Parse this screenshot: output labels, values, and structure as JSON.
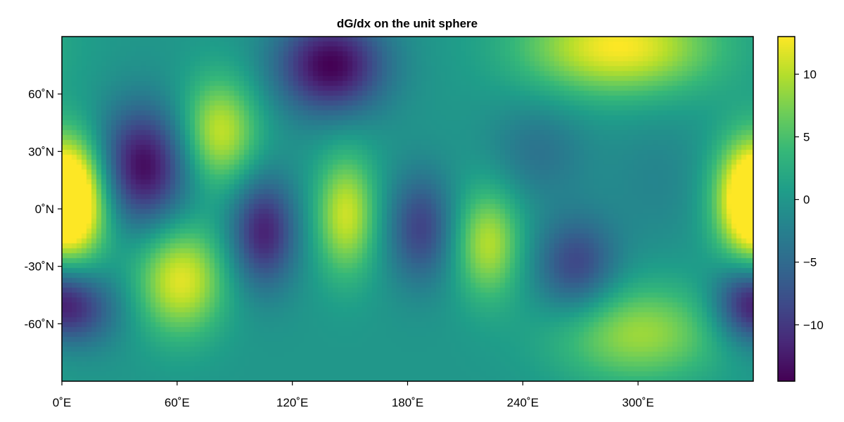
{
  "chart_data": {
    "type": "heatmap",
    "title": "dG/dx on the unit sphere",
    "xlabel": "",
    "ylabel": "",
    "x_range": [
      0,
      360
    ],
    "y_range": [
      -90,
      90
    ],
    "x_ticks": [
      0,
      60,
      120,
      180,
      240,
      300
    ],
    "x_tick_labels": [
      "0˚E",
      "60˚E",
      "120˚E",
      "180˚E",
      "240˚E",
      "300˚E"
    ],
    "y_ticks": [
      60,
      30,
      0,
      -30,
      -60
    ],
    "y_tick_labels": [
      "60˚N",
      "30˚N",
      "0˚N",
      "-30˚N",
      "-60˚N"
    ],
    "colormap": "viridis",
    "colorbar": {
      "range": [
        -14.5,
        13
      ],
      "ticks": [
        10,
        5,
        0,
        -5,
        -10
      ],
      "tick_labels": [
        "10",
        "5",
        "0",
        "−5",
        "−10"
      ]
    },
    "grid": false,
    "features": [
      {
        "lon": 5,
        "lat": 5,
        "value": 12,
        "spread_lon": 14,
        "spread_lat": 22
      },
      {
        "lon": 360,
        "lat": 5,
        "value": 12,
        "spread_lon": 14,
        "spread_lat": 22
      },
      {
        "lon": 42,
        "lat": 22,
        "value": -14,
        "spread_lon": 17,
        "spread_lat": 22
      },
      {
        "lon": 82,
        "lat": 40,
        "value": 11,
        "spread_lon": 14,
        "spread_lat": 20
      },
      {
        "lon": 140,
        "lat": 75,
        "value": -14.5,
        "spread_lon": 20,
        "spread_lat": 18
      },
      {
        "lon": 62,
        "lat": -37,
        "value": 12,
        "spread_lon": 16,
        "spread_lat": 20
      },
      {
        "lon": 105,
        "lat": -12,
        "value": -12,
        "spread_lon": 12,
        "spread_lat": 20
      },
      {
        "lon": 148,
        "lat": -3,
        "value": 11,
        "spread_lon": 11,
        "spread_lat": 22
      },
      {
        "lon": 187,
        "lat": -10,
        "value": -9,
        "spread_lon": 12,
        "spread_lat": 20
      },
      {
        "lon": 222,
        "lat": -18,
        "value": 10,
        "spread_lon": 12,
        "spread_lat": 20
      },
      {
        "lon": 268,
        "lat": -30,
        "value": -9,
        "spread_lon": 15,
        "spread_lat": 18
      },
      {
        "lon": 10,
        "lat": -52,
        "value": -8,
        "spread_lon": 15,
        "spread_lat": 14
      },
      {
        "lon": 355,
        "lat": -48,
        "value": -8,
        "spread_lon": 12,
        "spread_lat": 14
      },
      {
        "lon": 290,
        "lat": 85,
        "value": 13,
        "spread_lon": 35,
        "spread_lat": 18
      },
      {
        "lon": 300,
        "lat": -65,
        "value": 9,
        "spread_lon": 30,
        "spread_lat": 18
      },
      {
        "lon": 248,
        "lat": 30,
        "value": -4,
        "spread_lon": 18,
        "spread_lat": 18
      },
      {
        "lon": 310,
        "lat": 15,
        "value": -2,
        "spread_lon": 20,
        "spread_lat": 25
      }
    ]
  }
}
